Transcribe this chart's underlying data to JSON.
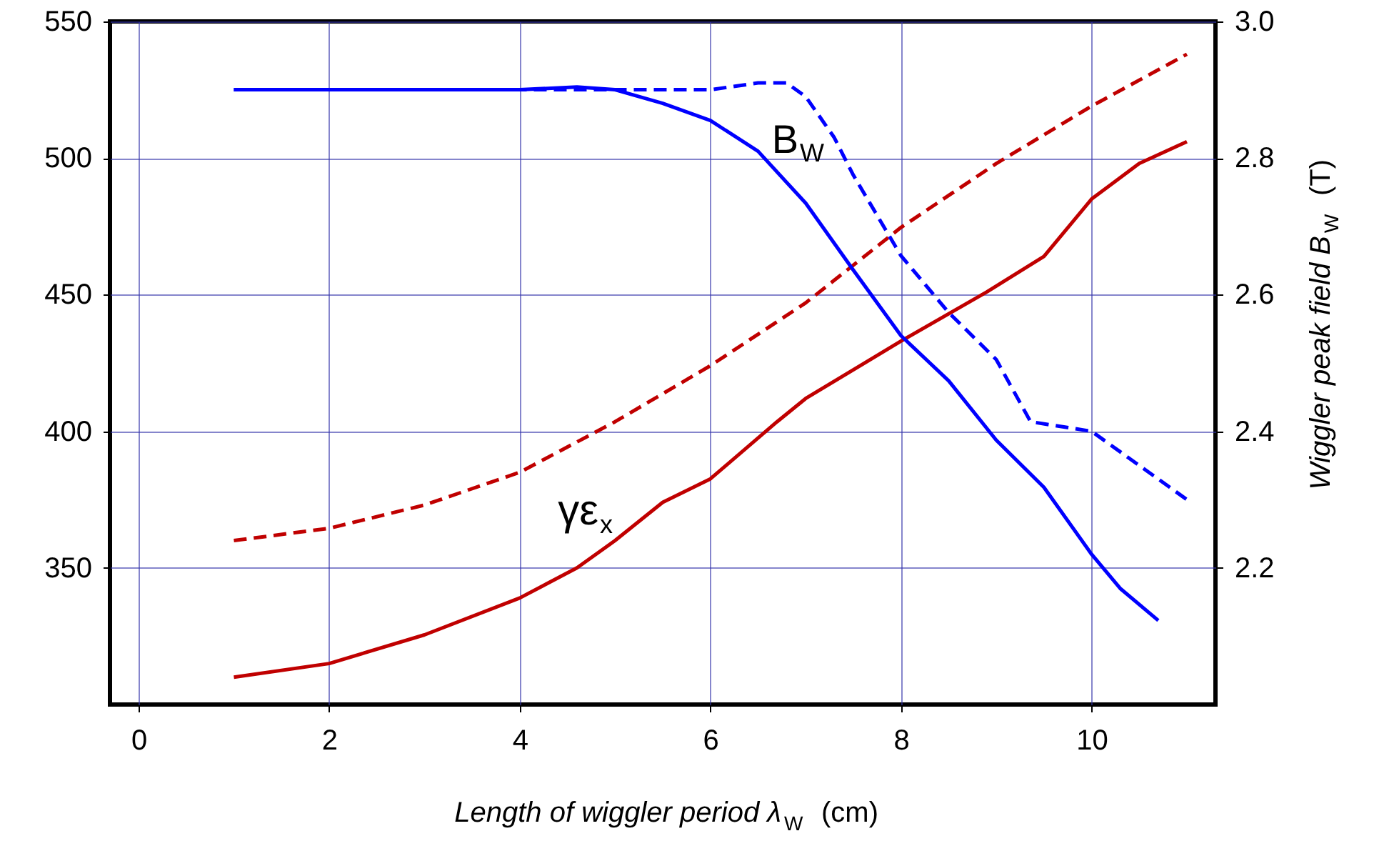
{
  "chart_data": {
    "type": "line",
    "xlabel": "Length of wiggler period λ$_{W}$ (cm)",
    "y2label": "Wiggler peak field B$_{W}$ (T)",
    "x": [
      1,
      2,
      3,
      4,
      4.6,
      5,
      5.5,
      6,
      6.5,
      7,
      7.5,
      8,
      8.5,
      9,
      9.5,
      10,
      10.3,
      10.7
    ],
    "xlim": [
      -0.3,
      11.3
    ],
    "xticks": [
      0,
      2,
      4,
      6,
      8,
      10
    ],
    "ylim": [
      300,
      550
    ],
    "yticks": [
      350,
      400,
      450,
      500,
      550
    ],
    "y2lim": [
      2.0,
      3.0
    ],
    "y2ticks": [
      2.2,
      2.4,
      2.6,
      2.8,
      {
        "value": 3,
        "label": "3.0"
      }
    ],
    "grid": true,
    "series": [
      {
        "color": "#0000ff",
        "axis": "y2",
        "line_style": "solid",
        "values": [
          2.9,
          2.9,
          2.9,
          2.9,
          2.904,
          2.9,
          2.88,
          2.855,
          2.81,
          2.734,
          2.636,
          2.54,
          2.474,
          2.387,
          2.318,
          2.22,
          2.17,
          2.123
        ]
      },
      {
        "color": "#0000ff",
        "axis": "y2",
        "line_style": "dashed",
        "x": [
          1,
          2,
          3,
          4,
          5,
          6,
          6.5,
          6.8,
          7,
          7.3,
          7.5,
          8,
          8.5,
          9,
          9.36,
          10,
          10.5,
          11
        ],
        "values": [
          2.9,
          2.9,
          2.9,
          2.9,
          2.9,
          2.9,
          2.91,
          2.91,
          2.89,
          2.83,
          2.775,
          2.657,
          2.574,
          2.505,
          2.414,
          2.4,
          2.35,
          2.3
        ]
      },
      {
        "color": "#c00000",
        "axis": "y",
        "line_style": "solid",
        "x": [
          1,
          2,
          3,
          4,
          4.6,
          5,
          5.5,
          6,
          6.7,
          7,
          8,
          8.9,
          9.5,
          10,
          10.5,
          11
        ],
        "values": [
          310,
          315,
          325.5,
          339,
          350,
          360,
          374,
          382.6,
          403.5,
          412,
          433,
          451,
          464,
          485,
          498,
          506
        ]
      },
      {
        "color": "#c00000",
        "axis": "y",
        "line_style": "dashed",
        "x": [
          1,
          2,
          3,
          4,
          5,
          6,
          7,
          8,
          9,
          10,
          11
        ],
        "values": [
          360,
          364.5,
          373,
          385,
          403.5,
          424,
          447,
          474.6,
          498,
          519,
          538
        ]
      }
    ],
    "annotations": [
      "B$_{W}$",
      "γε$_{x}$"
    ]
  }
}
